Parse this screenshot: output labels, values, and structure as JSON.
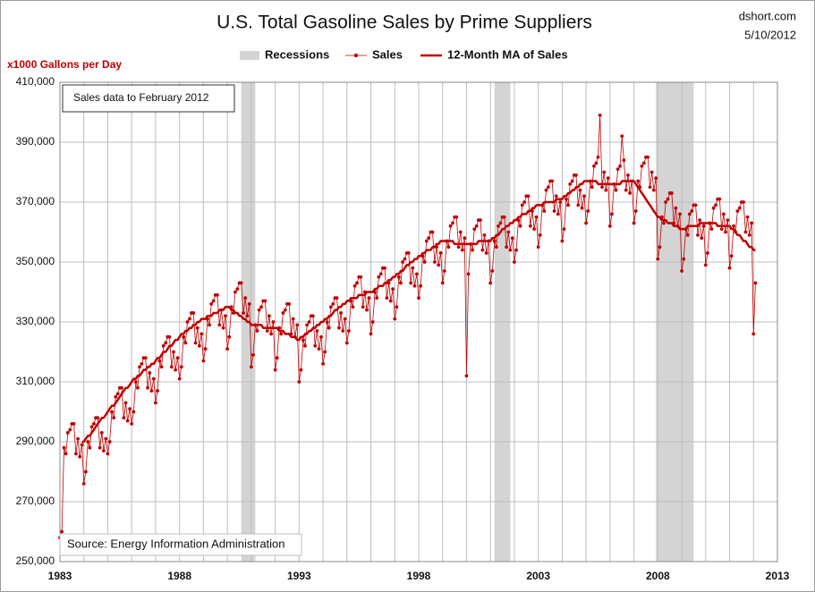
{
  "chart_data": {
    "type": "line",
    "title": "U.S. Total Gasoline Sales by Prime Suppliers",
    "source_site": "dshort.com",
    "date": "5/10/2012",
    "y_label": "x1000  Gallons per Day",
    "annotation": "Sales data to February  2012",
    "source": "Source: Energy Information Administration",
    "xlim": [
      1983,
      2013
    ],
    "xticks": [
      1983,
      1988,
      1993,
      1998,
      2003,
      2008,
      2013
    ],
    "minor_xticks": [
      1984,
      1985,
      1986,
      1987,
      1989,
      1990,
      1991,
      1992,
      1994,
      1995,
      1996,
      1997,
      1999,
      2000,
      2001,
      2002,
      2004,
      2005,
      2006,
      2007,
      2009,
      2010,
      2011,
      2012
    ],
    "ylim": [
      250000,
      410000
    ],
    "yticks": [
      {
        "value": 250000,
        "label": "250,000"
      },
      {
        "value": 270000,
        "label": "270,000"
      },
      {
        "value": 290000,
        "label": "290,000"
      },
      {
        "value": 310000,
        "label": "310,000"
      },
      {
        "value": 330000,
        "label": "330,000"
      },
      {
        "value": 350000,
        "label": "350,000"
      },
      {
        "value": 370000,
        "label": "370,000"
      },
      {
        "value": 390000,
        "label": "390,000"
      },
      {
        "value": 410000,
        "label": "410,000"
      }
    ],
    "grid": true,
    "bands": {
      "name": "Recessions",
      "color": "#d4d4d4",
      "ranges": [
        [
          1990.58,
          1991.17
        ],
        [
          2001.17,
          2001.83
        ],
        [
          2007.92,
          2009.5
        ]
      ]
    },
    "x": [
      1983,
      1983.08,
      1983.17,
      1983.25,
      1983.33,
      1983.42,
      1983.5,
      1983.58,
      1983.67,
      1983.75,
      1983.83,
      1983.92,
      1984,
      1984.08,
      1984.17,
      1984.25,
      1984.33,
      1984.42,
      1984.5,
      1984.58,
      1984.67,
      1984.75,
      1984.83,
      1984.92,
      1985,
      1985.08,
      1985.17,
      1985.25,
      1985.33,
      1985.42,
      1985.5,
      1985.58,
      1985.67,
      1985.75,
      1985.83,
      1985.92,
      1986,
      1986.08,
      1986.17,
      1986.25,
      1986.33,
      1986.42,
      1986.5,
      1986.58,
      1986.67,
      1986.75,
      1986.83,
      1986.92,
      1987,
      1987.08,
      1987.17,
      1987.25,
      1987.33,
      1987.42,
      1987.5,
      1987.58,
      1987.67,
      1987.75,
      1987.83,
      1987.92,
      1988,
      1988.08,
      1988.17,
      1988.25,
      1988.33,
      1988.42,
      1988.5,
      1988.58,
      1988.67,
      1988.75,
      1988.83,
      1988.92,
      1989,
      1989.08,
      1989.17,
      1989.25,
      1989.33,
      1989.42,
      1989.5,
      1989.58,
      1989.67,
      1989.75,
      1989.83,
      1989.92,
      1990,
      1990.08,
      1990.17,
      1990.25,
      1990.33,
      1990.42,
      1990.5,
      1990.58,
      1990.67,
      1990.75,
      1990.83,
      1990.92,
      1991,
      1991.08,
      1991.17,
      1991.25,
      1991.33,
      1991.42,
      1991.5,
      1991.58,
      1991.67,
      1991.75,
      1991.83,
      1991.92,
      1992,
      1992.08,
      1992.17,
      1992.25,
      1992.33,
      1992.42,
      1992.5,
      1992.58,
      1992.67,
      1992.75,
      1992.83,
      1992.92,
      1993,
      1993.08,
      1993.17,
      1993.25,
      1993.33,
      1993.42,
      1993.5,
      1993.58,
      1993.67,
      1993.75,
      1993.83,
      1993.92,
      1994,
      1994.08,
      1994.17,
      1994.25,
      1994.33,
      1994.42,
      1994.5,
      1994.58,
      1994.67,
      1994.75,
      1994.83,
      1994.92,
      1995,
      1995.08,
      1995.17,
      1995.25,
      1995.33,
      1995.42,
      1995.5,
      1995.58,
      1995.67,
      1995.75,
      1995.83,
      1995.92,
      1996,
      1996.08,
      1996.17,
      1996.25,
      1996.33,
      1996.42,
      1996.5,
      1996.58,
      1996.67,
      1996.75,
      1996.83,
      1996.92,
      1997,
      1997.08,
      1997.17,
      1997.25,
      1997.33,
      1997.42,
      1997.5,
      1997.58,
      1997.67,
      1997.75,
      1997.83,
      1997.92,
      1998,
      1998.08,
      1998.17,
      1998.25,
      1998.33,
      1998.42,
      1998.5,
      1998.58,
      1998.67,
      1998.75,
      1998.83,
      1998.92,
      1999,
      1999.08,
      1999.17,
      1999.25,
      1999.33,
      1999.42,
      1999.5,
      1999.58,
      1999.67,
      1999.75,
      1999.83,
      1999.92,
      2000,
      2000.08,
      2000.17,
      2000.25,
      2000.33,
      2000.42,
      2000.5,
      2000.58,
      2000.67,
      2000.75,
      2000.83,
      2000.92,
      2001,
      2001.08,
      2001.17,
      2001.25,
      2001.33,
      2001.42,
      2001.5,
      2001.58,
      2001.67,
      2001.75,
      2001.83,
      2001.92,
      2002,
      2002.08,
      2002.17,
      2002.25,
      2002.33,
      2002.42,
      2002.5,
      2002.58,
      2002.67,
      2002.75,
      2002.83,
      2002.92,
      2003,
      2003.08,
      2003.17,
      2003.25,
      2003.33,
      2003.42,
      2003.5,
      2003.58,
      2003.67,
      2003.75,
      2003.83,
      2003.92,
      2004,
      2004.08,
      2004.17,
      2004.25,
      2004.33,
      2004.42,
      2004.5,
      2004.58,
      2004.67,
      2004.75,
      2004.83,
      2004.92,
      2005,
      2005.08,
      2005.17,
      2005.25,
      2005.33,
      2005.42,
      2005.5,
      2005.58,
      2005.67,
      2005.75,
      2005.83,
      2005.92,
      2006,
      2006.08,
      2006.17,
      2006.25,
      2006.33,
      2006.42,
      2006.5,
      2006.58,
      2006.67,
      2006.75,
      2006.83,
      2006.92,
      2007,
      2007.08,
      2007.17,
      2007.25,
      2007.33,
      2007.42,
      2007.5,
      2007.58,
      2007.67,
      2007.75,
      2007.83,
      2007.92,
      2008,
      2008.08,
      2008.17,
      2008.25,
      2008.33,
      2008.42,
      2008.5,
      2008.58,
      2008.67,
      2008.75,
      2008.83,
      2008.92,
      2009,
      2009.08,
      2009.17,
      2009.25,
      2009.33,
      2009.42,
      2009.5,
      2009.58,
      2009.67,
      2009.75,
      2009.83,
      2009.92,
      2010,
      2010.08,
      2010.17,
      2010.25,
      2010.33,
      2010.42,
      2010.5,
      2010.58,
      2010.67,
      2010.75,
      2010.83,
      2010.92,
      2011,
      2011.08,
      2011.17,
      2011.25,
      2011.33,
      2011.42,
      2011.5,
      2011.58,
      2011.67,
      2011.75,
      2011.83,
      2011.92,
      2012,
      2012.08
    ],
    "series": [
      {
        "name": "Sales",
        "color": "#c00000",
        "markers": true,
        "width": 0.8,
        "values": [
          258000,
          260000,
          288000,
          286000,
          293000,
          294000,
          296000,
          296000,
          286000,
          291000,
          285000,
          289000,
          276000,
          280000,
          290000,
          288000,
          295000,
          296000,
          298000,
          298000,
          288000,
          293000,
          287000,
          291000,
          286000,
          290000,
          300000,
          298000,
          305000,
          306000,
          308000,
          308000,
          298000,
          303000,
          297000,
          301000,
          296000,
          300000,
          310000,
          308000,
          315000,
          316000,
          318000,
          318000,
          308000,
          313000,
          307000,
          311000,
          303000,
          307000,
          317000,
          315000,
          322000,
          323000,
          325000,
          325000,
          315000,
          320000,
          314000,
          318000,
          311000,
          315000,
          325000,
          323000,
          330000,
          331000,
          333000,
          333000,
          323000,
          328000,
          322000,
          326000,
          317000,
          321000,
          331000,
          329000,
          336000,
          337000,
          339000,
          339000,
          329000,
          334000,
          328000,
          332000,
          321000,
          325000,
          335000,
          333000,
          340000,
          341000,
          343000,
          343000,
          333000,
          338000,
          332000,
          336000,
          315000,
          319000,
          329000,
          327000,
          334000,
          335000,
          337000,
          337000,
          327000,
          332000,
          326000,
          330000,
          314000,
          318000,
          328000,
          326000,
          333000,
          334000,
          336000,
          336000,
          326000,
          331000,
          325000,
          329000,
          310000,
          314000,
          324000,
          322000,
          329000,
          330000,
          332000,
          332000,
          322000,
          327000,
          321000,
          325000,
          316000,
          320000,
          330000,
          328000,
          335000,
          336000,
          338000,
          338000,
          328000,
          333000,
          327000,
          331000,
          323000,
          327000,
          337000,
          335000,
          342000,
          343000,
          345000,
          345000,
          335000,
          340000,
          334000,
          338000,
          326000,
          330000,
          340000,
          338000,
          345000,
          346000,
          348000,
          348000,
          338000,
          343000,
          337000,
          341000,
          331000,
          335000,
          345000,
          343000,
          350000,
          351000,
          353000,
          353000,
          343000,
          348000,
          342000,
          346000,
          338000,
          342000,
          352000,
          350000,
          357000,
          358000,
          360000,
          360000,
          350000,
          355000,
          349000,
          353000,
          343000,
          347000,
          357000,
          355000,
          362000,
          363000,
          365000,
          365000,
          355000,
          360000,
          354000,
          358000,
          312000,
          346000,
          356000,
          354000,
          361000,
          362000,
          364000,
          364000,
          354000,
          359000,
          353000,
          357000,
          343000,
          347000,
          357000,
          355000,
          362000,
          363000,
          365000,
          365000,
          355000,
          360000,
          354000,
          358000,
          350000,
          354000,
          364000,
          362000,
          369000,
          370000,
          372000,
          372000,
          362000,
          367000,
          361000,
          365000,
          355000,
          359000,
          369000,
          367000,
          374000,
          375000,
          377000,
          377000,
          367000,
          372000,
          366000,
          370000,
          357000,
          361000,
          371000,
          369000,
          376000,
          377000,
          379000,
          379000,
          369000,
          374000,
          368000,
          372000,
          363000,
          367000,
          377000,
          375000,
          382000,
          383000,
          385000,
          399000,
          375000,
          380000,
          374000,
          378000,
          362000,
          366000,
          376000,
          374000,
          381000,
          382000,
          392000,
          384000,
          374000,
          379000,
          373000,
          377000,
          363000,
          367000,
          377000,
          375000,
          382000,
          383000,
          385000,
          385000,
          375000,
          380000,
          374000,
          378000,
          351000,
          355000,
          365000,
          363000,
          370000,
          371000,
          373000,
          373000,
          363000,
          368000,
          362000,
          366000,
          347000,
          351000,
          361000,
          359000,
          366000,
          367000,
          369000,
          369000,
          359000,
          364000,
          358000,
          362000,
          349000,
          353000,
          363000,
          361000,
          368000,
          369000,
          371000,
          371000,
          361000,
          366000,
          360000,
          364000,
          348000,
          352000,
          362000,
          360000,
          367000,
          368000,
          370000,
          370000,
          360000,
          365000,
          359000,
          363000,
          326000,
          343000
        ]
      },
      {
        "name": "12-Month MA of Sales",
        "color": "#c00000",
        "markers": false,
        "width": 2.5,
        "values": [
          null,
          null,
          null,
          null,
          null,
          null,
          null,
          null,
          null,
          null,
          null,
          290000,
          290000,
          291000,
          292000,
          292000,
          293000,
          294000,
          295000,
          296000,
          297000,
          298000,
          298000,
          299000,
          300000,
          301000,
          302000,
          302000,
          303000,
          304000,
          305000,
          306000,
          307000,
          308000,
          308000,
          309000,
          310000,
          311000,
          311000,
          312000,
          312000,
          313000,
          314000,
          314000,
          315000,
          315000,
          316000,
          316000,
          317000,
          318000,
          318000,
          319000,
          320000,
          320000,
          321000,
          322000,
          322000,
          323000,
          324000,
          324000,
          325000,
          326000,
          326000,
          327000,
          327000,
          328000,
          328000,
          329000,
          329000,
          330000,
          330000,
          331000,
          331000,
          331000,
          332000,
          332000,
          332000,
          333000,
          333000,
          333000,
          334000,
          334000,
          334000,
          335000,
          335000,
          335000,
          334000,
          334000,
          333000,
          333000,
          332000,
          332000,
          331000,
          331000,
          330000,
          330000,
          329000,
          329000,
          329000,
          329000,
          329000,
          329000,
          328000,
          328000,
          328000,
          328000,
          328000,
          328000,
          328000,
          328000,
          327000,
          327000,
          327000,
          326000,
          326000,
          326000,
          325000,
          325000,
          325000,
          324000,
          324000,
          325000,
          325000,
          326000,
          326000,
          327000,
          327000,
          328000,
          328000,
          329000,
          329000,
          330000,
          330000,
          331000,
          331000,
          332000,
          332000,
          333000,
          334000,
          334000,
          335000,
          335000,
          336000,
          336000,
          337000,
          337000,
          338000,
          338000,
          338000,
          338000,
          339000,
          339000,
          339000,
          339000,
          340000,
          340000,
          340000,
          340000,
          341000,
          341000,
          342000,
          342000,
          342000,
          343000,
          343000,
          344000,
          344000,
          345000,
          345000,
          346000,
          346000,
          347000,
          347000,
          348000,
          349000,
          349000,
          350000,
          350000,
          351000,
          351000,
          352000,
          352000,
          353000,
          353000,
          354000,
          354000,
          354000,
          355000,
          355000,
          356000,
          356000,
          357000,
          357000,
          357000,
          357000,
          357000,
          357000,
          357000,
          356000,
          356000,
          356000,
          356000,
          356000,
          356000,
          356000,
          356000,
          356000,
          356000,
          356000,
          356000,
          357000,
          357000,
          357000,
          357000,
          357000,
          357000,
          357000,
          358000,
          358000,
          359000,
          359000,
          360000,
          361000,
          361000,
          362000,
          362000,
          363000,
          363000,
          364000,
          364000,
          365000,
          365000,
          366000,
          366000,
          366000,
          367000,
          367000,
          368000,
          368000,
          369000,
          369000,
          369000,
          369000,
          370000,
          370000,
          370000,
          370000,
          370000,
          370000,
          371000,
          371000,
          371000,
          371000,
          372000,
          372000,
          373000,
          373000,
          374000,
          374000,
          375000,
          375000,
          376000,
          376000,
          377000,
          377000,
          377000,
          377000,
          377000,
          377000,
          377000,
          376000,
          376000,
          376000,
          376000,
          376000,
          376000,
          376000,
          376000,
          376000,
          376000,
          376000,
          376000,
          377000,
          377000,
          377000,
          377000,
          377000,
          377000,
          377000,
          376000,
          375000,
          374000,
          373000,
          372000,
          371000,
          370000,
          369000,
          368000,
          367000,
          366000,
          365000,
          365000,
          364000,
          364000,
          364000,
          363000,
          363000,
          363000,
          362000,
          362000,
          362000,
          361000,
          361000,
          361000,
          361000,
          362000,
          362000,
          362000,
          362000,
          362000,
          362000,
          363000,
          363000,
          363000,
          363000,
          363000,
          363000,
          363000,
          363000,
          363000,
          362000,
          362000,
          362000,
          362000,
          362000,
          362000,
          362000,
          361000,
          361000,
          360000,
          359000,
          359000,
          358000,
          357000,
          357000,
          356000,
          355000,
          355000,
          354000,
          354000
        ]
      }
    ]
  }
}
